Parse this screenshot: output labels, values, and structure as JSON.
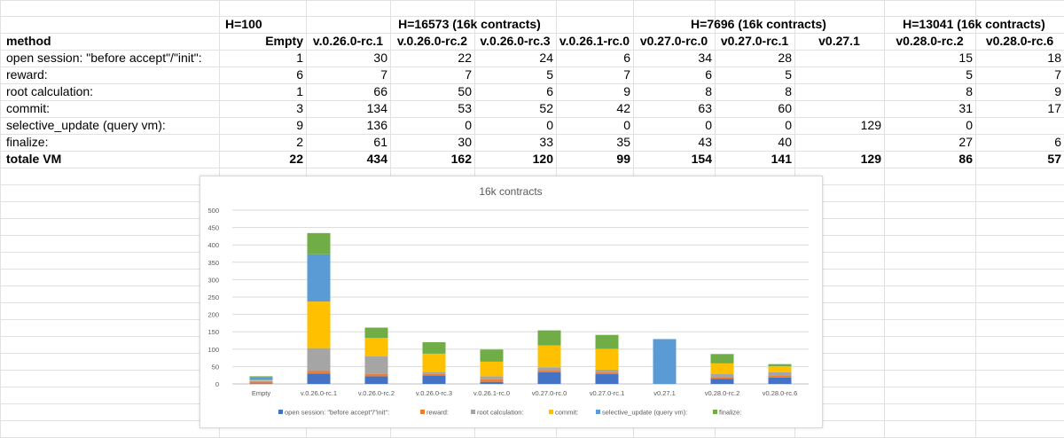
{
  "table": {
    "group_headers": [
      {
        "col": 1,
        "label": "H=100"
      },
      {
        "col": 2,
        "label": "H=16573 (16k contracts)"
      },
      {
        "col": 6,
        "label": "H=7696 (16k contracts)"
      },
      {
        "col": 9,
        "label": "H=13041 (16k contracts)"
      }
    ],
    "corner_label": "method",
    "columns": [
      "Empty",
      "v.0.26.0-rc.1",
      "v.0.26.0-rc.2",
      "v.0.26.0-rc.3",
      "v.0.26.1-rc.0",
      "v0.27.0-rc.0",
      "v0.27.0-rc.1",
      "v0.27.1",
      "v0.28.0-rc.2",
      "v0.28.0-rc.6"
    ],
    "rows": [
      {
        "label": "open session: \"before accept\"/\"init\":",
        "values": [
          "1",
          "30",
          "22",
          "24",
          "6",
          "34",
          "28",
          "",
          "15",
          "18"
        ]
      },
      {
        "label": "reward:",
        "values": [
          "6",
          "7",
          "7",
          "5",
          "7",
          "6",
          "5",
          "",
          "5",
          "7"
        ]
      },
      {
        "label": "root calculation:",
        "values": [
          "1",
          "66",
          "50",
          "6",
          "9",
          "8",
          "8",
          "",
          "8",
          "9"
        ]
      },
      {
        "label": "commit:",
        "values": [
          "3",
          "134",
          "53",
          "52",
          "42",
          "63",
          "60",
          "",
          "31",
          "17"
        ]
      },
      {
        "label": "selective_update (query vm):",
        "values": [
          "9",
          "136",
          "0",
          "0",
          "0",
          "0",
          "0",
          "129",
          "0",
          ""
        ]
      },
      {
        "label": "finalize:",
        "values": [
          "2",
          "61",
          "30",
          "33",
          "35",
          "43",
          "40",
          "",
          "27",
          "6"
        ]
      }
    ],
    "total": {
      "label": "totale VM",
      "values": [
        "22",
        "434",
        "162",
        "120",
        "99",
        "154",
        "141",
        "129",
        "86",
        "57"
      ]
    }
  },
  "chart_data": {
    "type": "bar",
    "stacked": true,
    "title": "16k contracts",
    "categories": [
      "Empty",
      "v.0.26.0-rc.1",
      "v.0.26.0-rc.2",
      "v.0.26.0-rc.3",
      "v.0.26.1-rc.0",
      "v0.27.0-rc.0",
      "v0.27.0-rc.1",
      "v0.27.1",
      "v0.28.0-rc.2",
      "v0.28.0-rc.6"
    ],
    "series": [
      {
        "name": "open session: \"before accept\"/\"init\":",
        "color": "#4472c4",
        "values": [
          1,
          30,
          22,
          24,
          6,
          34,
          28,
          0,
          15,
          18
        ]
      },
      {
        "name": "reward:",
        "color": "#ed7d31",
        "values": [
          6,
          7,
          7,
          5,
          7,
          6,
          5,
          0,
          5,
          7
        ]
      },
      {
        "name": "root calculation:",
        "color": "#a5a5a5",
        "values": [
          1,
          66,
          50,
          6,
          9,
          8,
          8,
          0,
          8,
          9
        ]
      },
      {
        "name": "commit:",
        "color": "#ffc000",
        "values": [
          3,
          134,
          53,
          52,
          42,
          63,
          60,
          0,
          31,
          17
        ]
      },
      {
        "name": "selective_update (query vm):",
        "color": "#5b9bd5",
        "values": [
          9,
          136,
          0,
          0,
          0,
          0,
          0,
          129,
          0,
          0
        ]
      },
      {
        "name": "finalize:",
        "color": "#70ad47",
        "values": [
          2,
          61,
          30,
          33,
          35,
          43,
          40,
          0,
          27,
          6
        ]
      }
    ],
    "ylim": [
      0,
      500
    ],
    "yticks": [
      "0",
      "50",
      "100",
      "150",
      "200",
      "250",
      "300",
      "350",
      "400",
      "450",
      "500"
    ],
    "xlabel": "",
    "ylabel": "",
    "grid": true,
    "legend_position": "bottom"
  }
}
